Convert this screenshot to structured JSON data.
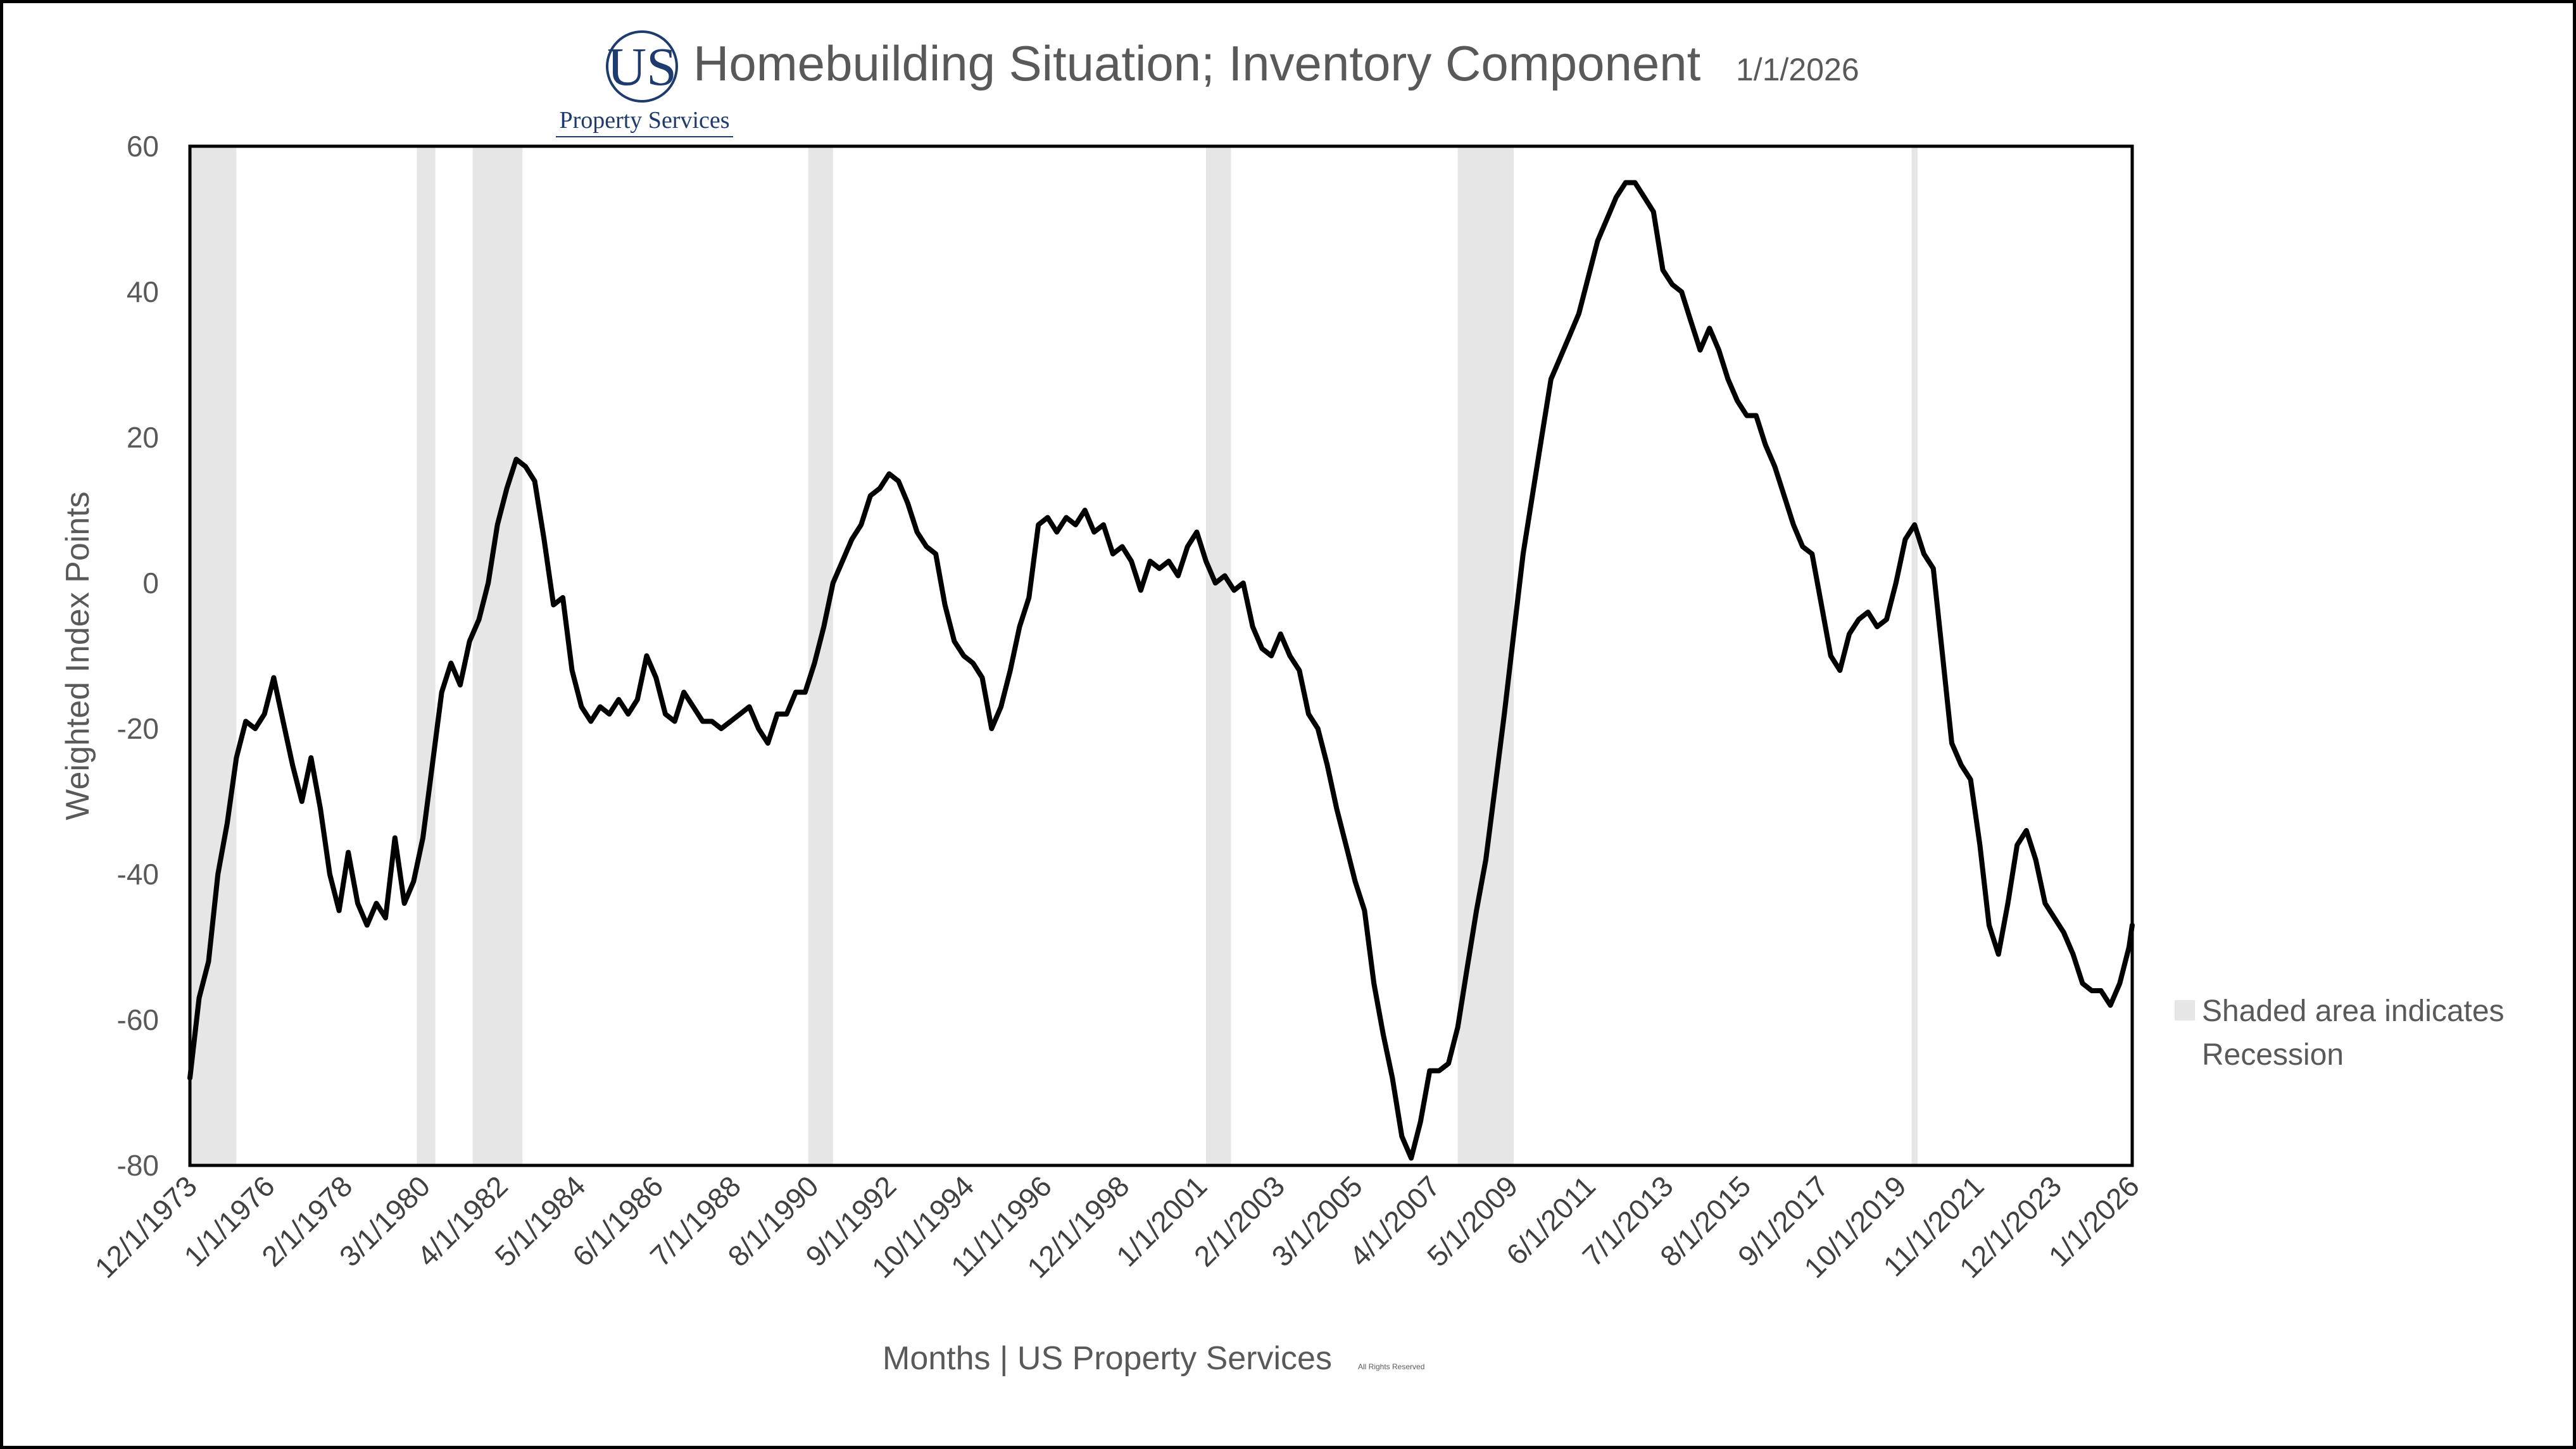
{
  "logo": {
    "mark": "US",
    "name": "Property Services"
  },
  "header": {
    "title": "Homebuilding Situation; Inventory Component",
    "date": "1/1/2026"
  },
  "legend": {
    "line1": "Shaded area indicates",
    "line2": "Recession",
    "swatch_color": "#e6e6e6"
  },
  "colors": {
    "line": "#000000",
    "recession": "#e6e6e6",
    "text": "#595959"
  },
  "chart_data": {
    "type": "line",
    "title": "Homebuilding Situation; Inventory Component",
    "ylabel": "Weighted Index Points",
    "xlabel": "Months | US Property Services",
    "xlabel_note": "All Rights Reserved",
    "x_range": [
      "1973-12-01",
      "2026-01-01"
    ],
    "ylim": [
      -80,
      60
    ],
    "yticks": [
      60,
      40,
      20,
      0,
      -20,
      -40,
      -60,
      -80
    ],
    "xticks": [
      "12/1/1973",
      "1/1/1976",
      "2/1/1978",
      "3/1/1980",
      "4/1/1982",
      "5/1/1984",
      "6/1/1986",
      "7/1/1988",
      "8/1/1990",
      "9/1/1992",
      "10/1/1994",
      "11/1/1996",
      "12/1/1998",
      "1/1/2001",
      "2/1/2003",
      "3/1/2005",
      "4/1/2007",
      "5/1/2009",
      "6/1/2011",
      "7/1/2013",
      "8/1/2015",
      "9/1/2017",
      "10/1/2019",
      "11/1/2021",
      "12/1/2023",
      "1/1/2026"
    ],
    "grid": false,
    "legend_position": "right",
    "recessions": [
      [
        "1973-12-01",
        "1975-03-01"
      ],
      [
        "1980-01-01",
        "1980-07-01"
      ],
      [
        "1981-07-01",
        "1982-11-01"
      ],
      [
        "1990-07-01",
        "1991-03-01"
      ],
      [
        "2001-03-01",
        "2001-11-01"
      ],
      [
        "2007-12-01",
        "2009-06-01"
      ],
      [
        "2020-02-01",
        "2020-04-01"
      ]
    ],
    "series": [
      {
        "points": [
          [
            "1973-12-01",
            -68
          ],
          [
            "1974-03-01",
            -57
          ],
          [
            "1974-06-01",
            -52
          ],
          [
            "1974-09-01",
            -40
          ],
          [
            "1974-12-01",
            -33
          ],
          [
            "1975-03-01",
            -24
          ],
          [
            "1975-06-01",
            -19
          ],
          [
            "1975-09-01",
            -20
          ],
          [
            "1975-12-01",
            -18
          ],
          [
            "1976-03-01",
            -13
          ],
          [
            "1976-06-01",
            -19
          ],
          [
            "1976-09-01",
            -25
          ],
          [
            "1976-12-01",
            -30
          ],
          [
            "1977-03-01",
            -24
          ],
          [
            "1977-06-01",
            -31
          ],
          [
            "1977-09-01",
            -40
          ],
          [
            "1977-12-01",
            -45
          ],
          [
            "1978-03-01",
            -37
          ],
          [
            "1978-06-01",
            -44
          ],
          [
            "1978-09-01",
            -47
          ],
          [
            "1978-12-01",
            -44
          ],
          [
            "1979-03-01",
            -46
          ],
          [
            "1979-06-01",
            -35
          ],
          [
            "1979-09-01",
            -44
          ],
          [
            "1979-12-01",
            -41
          ],
          [
            "1980-03-01",
            -35
          ],
          [
            "1980-06-01",
            -25
          ],
          [
            "1980-09-01",
            -15
          ],
          [
            "1980-12-01",
            -11
          ],
          [
            "1981-03-01",
            -14
          ],
          [
            "1981-06-01",
            -8
          ],
          [
            "1981-09-01",
            -5
          ],
          [
            "1981-12-01",
            0
          ],
          [
            "1982-03-01",
            8
          ],
          [
            "1982-06-01",
            13
          ],
          [
            "1982-09-01",
            17
          ],
          [
            "1982-12-01",
            16
          ],
          [
            "1983-03-01",
            14
          ],
          [
            "1983-06-01",
            6
          ],
          [
            "1983-09-01",
            -3
          ],
          [
            "1983-12-01",
            -2
          ],
          [
            "1984-03-01",
            -12
          ],
          [
            "1984-06-01",
            -17
          ],
          [
            "1984-09-01",
            -19
          ],
          [
            "1984-12-01",
            -17
          ],
          [
            "1985-03-01",
            -18
          ],
          [
            "1985-06-01",
            -16
          ],
          [
            "1985-09-01",
            -18
          ],
          [
            "1985-12-01",
            -16
          ],
          [
            "1986-03-01",
            -10
          ],
          [
            "1986-06-01",
            -13
          ],
          [
            "1986-09-01",
            -18
          ],
          [
            "1986-12-01",
            -19
          ],
          [
            "1987-03-01",
            -15
          ],
          [
            "1987-06-01",
            -17
          ],
          [
            "1987-09-01",
            -19
          ],
          [
            "1987-12-01",
            -19
          ],
          [
            "1988-03-01",
            -20
          ],
          [
            "1988-06-01",
            -19
          ],
          [
            "1988-09-01",
            -18
          ],
          [
            "1988-12-01",
            -17
          ],
          [
            "1989-03-01",
            -20
          ],
          [
            "1989-06-01",
            -22
          ],
          [
            "1989-09-01",
            -18
          ],
          [
            "1989-12-01",
            -18
          ],
          [
            "1990-03-01",
            -15
          ],
          [
            "1990-06-01",
            -15
          ],
          [
            "1990-09-01",
            -11
          ],
          [
            "1990-12-01",
            -6
          ],
          [
            "1991-03-01",
            0
          ],
          [
            "1991-06-01",
            3
          ],
          [
            "1991-09-01",
            6
          ],
          [
            "1991-12-01",
            8
          ],
          [
            "1992-03-01",
            12
          ],
          [
            "1992-06-01",
            13
          ],
          [
            "1992-09-01",
            15
          ],
          [
            "1992-12-01",
            14
          ],
          [
            "1993-03-01",
            11
          ],
          [
            "1993-06-01",
            7
          ],
          [
            "1993-09-01",
            5
          ],
          [
            "1993-12-01",
            4
          ],
          [
            "1994-03-01",
            -3
          ],
          [
            "1994-06-01",
            -8
          ],
          [
            "1994-09-01",
            -10
          ],
          [
            "1994-12-01",
            -11
          ],
          [
            "1995-03-01",
            -13
          ],
          [
            "1995-06-01",
            -20
          ],
          [
            "1995-09-01",
            -17
          ],
          [
            "1995-12-01",
            -12
          ],
          [
            "1996-03-01",
            -6
          ],
          [
            "1996-06-01",
            -2
          ],
          [
            "1996-09-01",
            8
          ],
          [
            "1996-12-01",
            9
          ],
          [
            "1997-03-01",
            7
          ],
          [
            "1997-06-01",
            9
          ],
          [
            "1997-09-01",
            8
          ],
          [
            "1997-12-01",
            10
          ],
          [
            "1998-03-01",
            7
          ],
          [
            "1998-06-01",
            8
          ],
          [
            "1998-09-01",
            4
          ],
          [
            "1998-12-01",
            5
          ],
          [
            "1999-03-01",
            3
          ],
          [
            "1999-06-01",
            -1
          ],
          [
            "1999-09-01",
            3
          ],
          [
            "1999-12-01",
            2
          ],
          [
            "2000-03-01",
            3
          ],
          [
            "2000-06-01",
            1
          ],
          [
            "2000-09-01",
            5
          ],
          [
            "2000-12-01",
            7
          ],
          [
            "2001-03-01",
            3
          ],
          [
            "2001-06-01",
            0
          ],
          [
            "2001-09-01",
            1
          ],
          [
            "2001-12-01",
            -1
          ],
          [
            "2002-03-01",
            0
          ],
          [
            "2002-06-01",
            -6
          ],
          [
            "2002-09-01",
            -9
          ],
          [
            "2002-12-01",
            -10
          ],
          [
            "2003-03-01",
            -7
          ],
          [
            "2003-06-01",
            -10
          ],
          [
            "2003-09-01",
            -12
          ],
          [
            "2003-12-01",
            -18
          ],
          [
            "2004-03-01",
            -20
          ],
          [
            "2004-06-01",
            -25
          ],
          [
            "2004-09-01",
            -31
          ],
          [
            "2004-12-01",
            -36
          ],
          [
            "2005-03-01",
            -41
          ],
          [
            "2005-06-01",
            -45
          ],
          [
            "2005-09-01",
            -55
          ],
          [
            "2005-12-01",
            -62
          ],
          [
            "2006-03-01",
            -68
          ],
          [
            "2006-06-01",
            -76
          ],
          [
            "2006-09-01",
            -79
          ],
          [
            "2006-12-01",
            -74
          ],
          [
            "2007-03-01",
            -67
          ],
          [
            "2007-06-01",
            -67
          ],
          [
            "2007-09-01",
            -66
          ],
          [
            "2007-12-01",
            -61
          ],
          [
            "2008-03-01",
            -53
          ],
          [
            "2008-06-01",
            -45
          ],
          [
            "2008-09-01",
            -38
          ],
          [
            "2008-12-01",
            -28
          ],
          [
            "2009-03-01",
            -18
          ],
          [
            "2009-06-01",
            -7
          ],
          [
            "2009-09-01",
            4
          ],
          [
            "2009-12-01",
            12
          ],
          [
            "2010-03-01",
            20
          ],
          [
            "2010-06-01",
            28
          ],
          [
            "2010-09-01",
            31
          ],
          [
            "2010-12-01",
            34
          ],
          [
            "2011-03-01",
            37
          ],
          [
            "2011-06-01",
            42
          ],
          [
            "2011-09-01",
            47
          ],
          [
            "2011-12-01",
            50
          ],
          [
            "2012-03-01",
            53
          ],
          [
            "2012-06-01",
            55
          ],
          [
            "2012-09-01",
            55
          ],
          [
            "2012-12-01",
            53
          ],
          [
            "2013-03-01",
            51
          ],
          [
            "2013-06-01",
            43
          ],
          [
            "2013-09-01",
            41
          ],
          [
            "2013-12-01",
            40
          ],
          [
            "2014-03-01",
            36
          ],
          [
            "2014-06-01",
            32
          ],
          [
            "2014-09-01",
            35
          ],
          [
            "2014-12-01",
            32
          ],
          [
            "2015-03-01",
            28
          ],
          [
            "2015-06-01",
            25
          ],
          [
            "2015-09-01",
            23
          ],
          [
            "2015-12-01",
            23
          ],
          [
            "2016-03-01",
            19
          ],
          [
            "2016-06-01",
            16
          ],
          [
            "2016-09-01",
            12
          ],
          [
            "2016-12-01",
            8
          ],
          [
            "2017-03-01",
            5
          ],
          [
            "2017-06-01",
            4
          ],
          [
            "2017-09-01",
            -3
          ],
          [
            "2017-12-01",
            -10
          ],
          [
            "2018-03-01",
            -12
          ],
          [
            "2018-06-01",
            -7
          ],
          [
            "2018-09-01",
            -5
          ],
          [
            "2018-12-01",
            -4
          ],
          [
            "2019-03-01",
            -6
          ],
          [
            "2019-06-01",
            -5
          ],
          [
            "2019-09-01",
            0
          ],
          [
            "2019-12-01",
            6
          ],
          [
            "2020-03-01",
            8
          ],
          [
            "2020-06-01",
            4
          ],
          [
            "2020-09-01",
            2
          ],
          [
            "2020-12-01",
            -10
          ],
          [
            "2021-03-01",
            -22
          ],
          [
            "2021-06-01",
            -25
          ],
          [
            "2021-09-01",
            -27
          ],
          [
            "2021-12-01",
            -36
          ],
          [
            "2022-03-01",
            -47
          ],
          [
            "2022-06-01",
            -51
          ],
          [
            "2022-09-01",
            -44
          ],
          [
            "2022-12-01",
            -36
          ],
          [
            "2023-03-01",
            -34
          ],
          [
            "2023-06-01",
            -38
          ],
          [
            "2023-09-01",
            -44
          ],
          [
            "2023-12-01",
            -46
          ],
          [
            "2024-03-01",
            -48
          ],
          [
            "2024-06-01",
            -51
          ],
          [
            "2024-09-01",
            -55
          ],
          [
            "2024-12-01",
            -56
          ],
          [
            "2025-03-01",
            -56
          ],
          [
            "2025-06-01",
            -58
          ],
          [
            "2025-09-01",
            -55
          ],
          [
            "2025-12-01",
            -50
          ],
          [
            "2026-01-01",
            -47
          ]
        ]
      }
    ]
  }
}
